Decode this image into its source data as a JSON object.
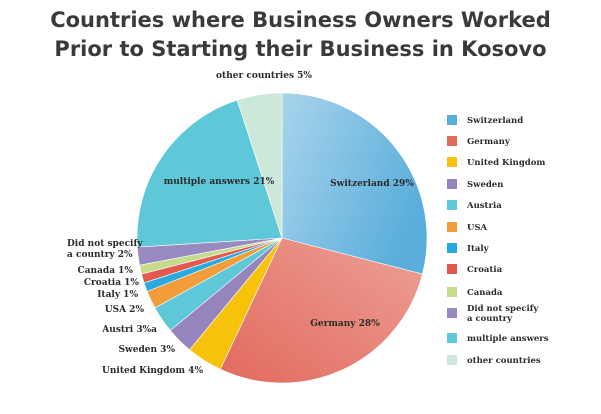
{
  "chart_data": {
    "type": "pie",
    "title_lines": [
      "Countries where Business Owners Worked",
      "Prior to Starting their Business in Kosovo"
    ],
    "slices": [
      {
        "legend": "Switzerland",
        "label": "Switzerland 29%",
        "value": 29,
        "color": "#5aaedb",
        "light": "#a9d4ec"
      },
      {
        "legend": "Germany",
        "label": "Germany 28%",
        "value": 28,
        "color": "#e26a5e",
        "light": "#eda096"
      },
      {
        "legend": "United Kingdom",
        "label": "United Kingdom 4%",
        "value": 4,
        "color": "#f7c20a"
      },
      {
        "legend": "Sweden",
        "label": "Sweden 3%",
        "value": 3,
        "color": "#9684bd"
      },
      {
        "legend": "Austria",
        "label": "Austri 3%a",
        "value": 3,
        "color": "#5ec8d8"
      },
      {
        "legend": "USA",
        "label": "USA 2%",
        "value": 2,
        "color": "#f39d3a"
      },
      {
        "legend": "Italy",
        "label": "Italy 1%",
        "value": 1,
        "color": "#29aae1"
      },
      {
        "legend": "Croatia",
        "label": "Croatia 1%",
        "value": 1,
        "color": "#e3584f"
      },
      {
        "legend": "Canada",
        "label": "Canada 1%",
        "value": 1,
        "color": "#c5dc8c"
      },
      {
        "legend": "Did not specify a country",
        "label": "Did not specify a country 2%",
        "value": 2,
        "color": "#9a8ac2"
      },
      {
        "legend": "multiple answers",
        "label": "multiple answers 21%",
        "value": 21,
        "color": "#5ec8d8"
      },
      {
        "legend": "other countries",
        "label": "other countries 5%",
        "value": 5,
        "color": "#cbe8d8"
      }
    ],
    "legend_position": "right"
  }
}
